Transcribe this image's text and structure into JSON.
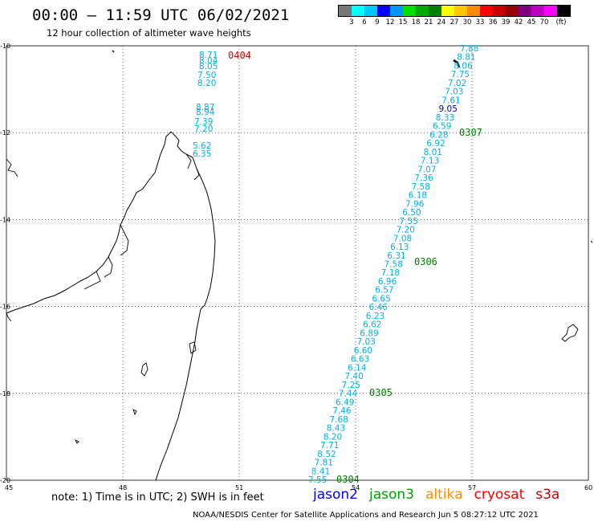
{
  "title": "00:00 – 11:59 UTC 06/02/2021",
  "subtitle": "12 hour collection of altimeter wave heights",
  "legend": {
    "unit": "(ft)",
    "colors": [
      "#777777",
      "#00ffff",
      "#00c8ff",
      "#0000ff",
      "#0096ff",
      "#00e000",
      "#00aa00",
      "#008000",
      "#ffff00",
      "#ffc800",
      "#ff8c00",
      "#ff0000",
      "#c80000",
      "#960000",
      "#800080",
      "#c000c0",
      "#ff00ff",
      "#000000"
    ],
    "ticks": [
      "3",
      "6",
      "9",
      "12",
      "15",
      "18",
      "21",
      "24",
      "27",
      "30",
      "33",
      "36",
      "39",
      "42",
      "45",
      "70"
    ]
  },
  "axes": {
    "lon_labels": [
      "45",
      "48",
      "51",
      "54",
      "57",
      "60"
    ],
    "lat_labels": [
      "-10",
      "-12",
      "-14",
      "-16",
      "-18",
      "-20"
    ]
  },
  "colors": {
    "jason3_swh": "#00b0e8",
    "jason2_swh": "#0000c8",
    "pass_time_green": "#008000",
    "pass_time_red": "#d00000"
  },
  "pass_times": {
    "cryosat": "0404",
    "jason3_a": "0307",
    "jason3_b": "0306",
    "jason3_c": "0305",
    "jason3_d": "0304"
  },
  "west_track_values": [
    "8.71",
    "8.04",
    "8.05",
    "7.50",
    "8.20",
    "8.87",
    "8.94",
    "7.39",
    "7.20",
    "5.62",
    "6.35"
  ],
  "east_track_values": [
    "7.88",
    "8.81",
    "8.06",
    "7.75",
    "7.02",
    "7.03",
    "7.61",
    "9.05",
    "8.33",
    "6.59",
    "6.28",
    "6.92",
    "8.01",
    "7.13",
    "7.07",
    "7.36",
    "7.58",
    "6.18",
    "7.96",
    "6.50",
    "7.55",
    "7.20",
    "7.08",
    "6.13",
    "6.31",
    "7.58",
    "7.18",
    "6.96",
    "6.57",
    "6.65",
    "6.46",
    "6.23",
    "6.62",
    "6.89",
    "7.03",
    "6.60",
    "6.63",
    "6.14",
    "7.40",
    "7.25",
    "7.44",
    "6.49",
    "7.46",
    "7.68",
    "8.43",
    "8.20",
    "7.71",
    "8.52",
    "7.81",
    "8.41",
    "7.55"
  ],
  "note": "note:  1) Time is in UTC;  2) SWH is in feet",
  "satellites": [
    {
      "name": "jason2",
      "color": "#0000ff"
    },
    {
      "name": "jason3",
      "color": "#00a000"
    },
    {
      "name": "altika",
      "color": "#ff8c00"
    },
    {
      "name": "cryosat",
      "color": "#ff0000"
    },
    {
      "name": "s3a",
      "color": "#cc0000"
    }
  ],
  "footer": "NOAA/NESDIS Center for Satellite Applications and Research    Jun  5 08:27:12 UTC 2021"
}
